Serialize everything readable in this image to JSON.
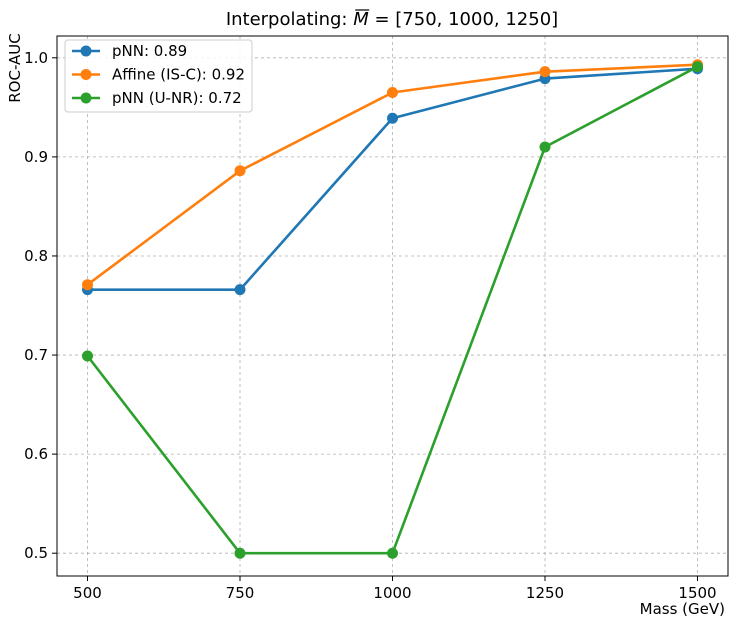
{
  "chart_data": {
    "type": "line",
    "title": "Interpolating: M̄ = [750, 1000, 1250]",
    "title_parts": {
      "prefix": "Interpolating: ",
      "symbol": "M",
      "suffix": " = [750, 1000, 1250]"
    },
    "xlabel": "Mass (GeV)",
    "ylabel": "ROC-AUC",
    "x": [
      500,
      750,
      1000,
      1250,
      1500
    ],
    "xlim": [
      450,
      1550
    ],
    "ylim": [
      0.477,
      1.022
    ],
    "xticks": [
      500,
      750,
      1000,
      1250,
      1500
    ],
    "yticks": [
      0.5,
      0.6,
      0.7,
      0.8,
      0.9,
      1.0
    ],
    "xtick_labels": [
      "500",
      "750",
      "1000",
      "1250",
      "1500"
    ],
    "ytick_labels": [
      "0.5",
      "0.6",
      "0.7",
      "0.8",
      "0.9",
      "1.0"
    ],
    "grid": true,
    "legend_position": "top-left",
    "series": [
      {
        "name": "pNN: 0.89",
        "color": "#1f77b4",
        "values": [
          0.766,
          0.766,
          0.939,
          0.979,
          0.989
        ]
      },
      {
        "name": "Affine (IS-C): 0.92",
        "color": "#ff7f0e",
        "values": [
          0.771,
          0.886,
          0.965,
          0.986,
          0.993
        ]
      },
      {
        "name": "pNN (U-NR): 0.72",
        "color": "#2ca02c",
        "values": [
          0.699,
          0.5,
          0.5,
          0.91,
          0.991
        ]
      }
    ]
  }
}
